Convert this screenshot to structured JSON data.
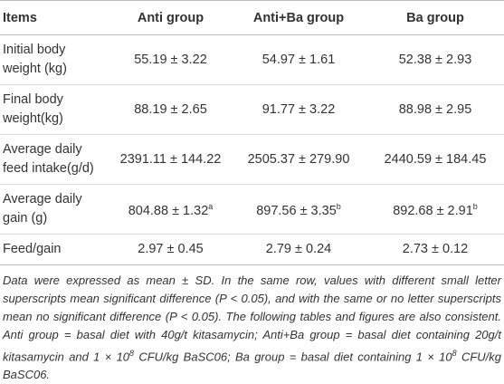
{
  "table": {
    "header": [
      "Items",
      "Anti group",
      "Anti+Ba group",
      "Ba group"
    ],
    "rows": [
      [
        "Initial body weight (kg)",
        "55.19 ± 3.22",
        "54.97 ± 1.61",
        "52.38 ± 2.93"
      ],
      [
        "Final body weight(kg)",
        "88.19 ± 2.65",
        "91.77 ± 3.22",
        "88.98 ± 2.95"
      ],
      [
        "Average daily feed intake(g/d)",
        "2391.11 ± 144.22",
        "2505.37 ± 279.90",
        "2440.59 ± 184.45"
      ],
      [
        "Average daily gain (g)",
        {
          "text": "804.88 ± 1.32",
          "sup": "a"
        },
        {
          "text": "897.56 ± 3.35",
          "sup": "b"
        },
        {
          "text": "892.68 ± 2.91",
          "sup": "b"
        }
      ],
      [
        "Feed/gain",
        "2.97 ± 0.45",
        "2.79 ± 0.24",
        "2.73 ± 0.12"
      ]
    ]
  },
  "note": [
    "Data were expressed as mean ± SD. In the same row, values with different small letter superscripts mean significant difference (P < 0.05), and with the same or no letter superscripts mean no significant difference (P < 0.05). The following tables and figures are also consistent. Anti group = basal diet with 40g/t kitasamycin; Anti+Ba group = basal diet containing 20g/t kitasamycin and 1 × 10",
    "8",
    " CFU/kg BaSC06; Ba group = basal diet containing 1 × 10",
    "8",
    " CFU/kg BaSC06."
  ]
}
